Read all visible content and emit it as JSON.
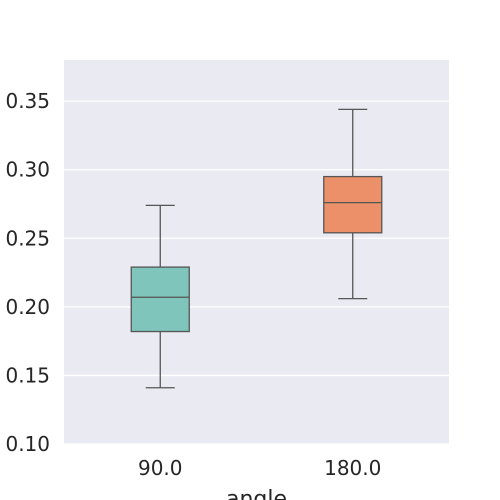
{
  "chart_data": {
    "type": "box",
    "xlabel": "angle",
    "ylabel": "",
    "ylim": [
      0.1,
      0.38
    ],
    "yticks": [
      "0.10",
      "0.15",
      "0.20",
      "0.25",
      "0.30",
      "0.35"
    ],
    "grid": true,
    "categories": [
      "90.0",
      "180.0"
    ],
    "boxes": [
      {
        "category": "90.0",
        "whisker_low": 0.141,
        "q1": 0.182,
        "median": 0.207,
        "q3": 0.229,
        "whisker_high": 0.274,
        "color": "#7fc5bb"
      },
      {
        "category": "180.0",
        "whisker_low": 0.206,
        "q1": 0.254,
        "median": 0.276,
        "q3": 0.295,
        "whisker_high": 0.344,
        "color": "#eb9068"
      }
    ]
  },
  "colors": {
    "plot_background": "#eaeaf2",
    "gridline": "#ffffff",
    "box_edge": "#555555"
  }
}
